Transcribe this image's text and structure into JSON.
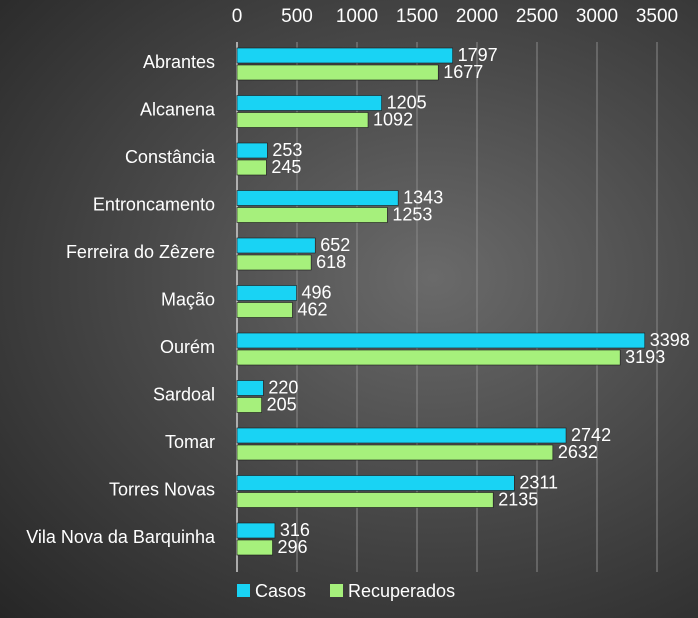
{
  "chart_data": {
    "type": "bar",
    "orientation": "horizontal",
    "categories": [
      "Abrantes",
      "Alcanena",
      "Constância",
      "Entroncamento",
      "Ferreira do Zêzere",
      "Mação",
      "Ourém",
      "Sardoal",
      "Tomar",
      "Torres Novas",
      "Vila Nova da Barquinha"
    ],
    "series": [
      {
        "name": "Casos",
        "values": [
          1797,
          1205,
          253,
          1343,
          652,
          496,
          3398,
          220,
          2742,
          2311,
          316
        ],
        "color": "#19d3f4"
      },
      {
        "name": "Recuperados",
        "values": [
          1677,
          1092,
          245,
          1253,
          618,
          462,
          3193,
          205,
          2632,
          2135,
          296
        ],
        "color": "#a6f07c"
      }
    ],
    "xlim": [
      0,
      3500
    ],
    "xticks": [
      "0",
      "500",
      "1000",
      "1500",
      "2000",
      "2500",
      "3000",
      "3500"
    ],
    "axis_position": "top",
    "grid": true,
    "legend": "bottom-left"
  }
}
